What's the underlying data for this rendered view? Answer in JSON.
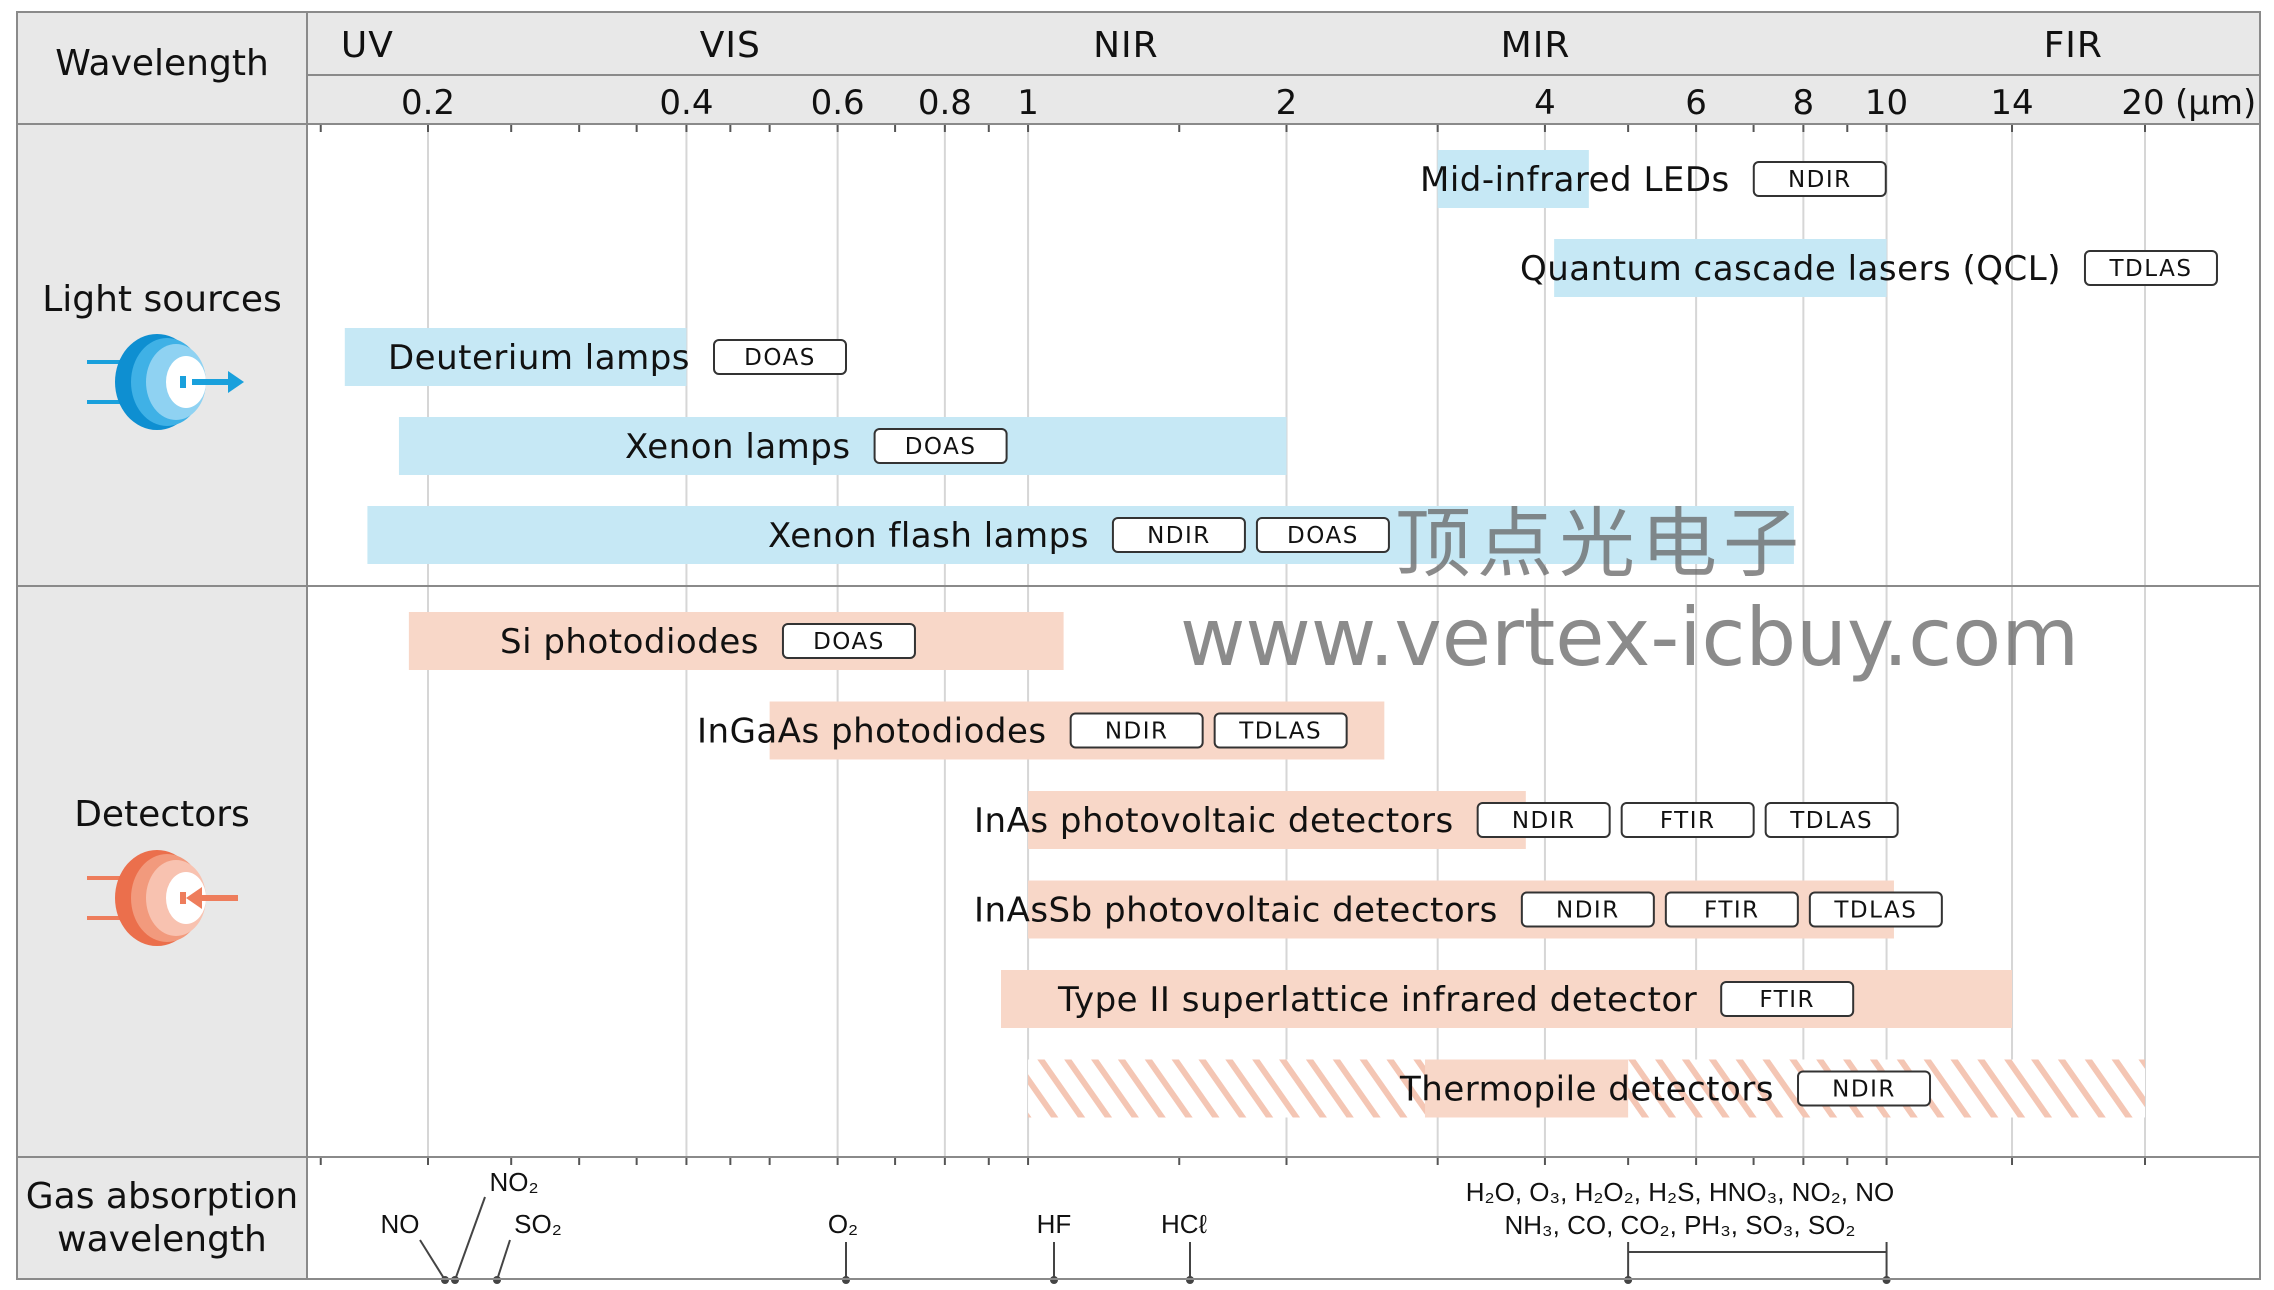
{
  "header": {
    "wavelength_label": "Wavelength",
    "unit": "(μm)"
  },
  "bands": [
    {
      "label": "UV",
      "at": 0.17
    },
    {
      "label": "VIS",
      "at": 0.45
    },
    {
      "label": "NIR",
      "at": 1.3
    },
    {
      "label": "MIR",
      "at": 3.9
    },
    {
      "label": "FIR",
      "at": 16.5
    }
  ],
  "ticks": [
    {
      "label": "0.2",
      "value": 0.2
    },
    {
      "label": "0.4",
      "value": 0.4
    },
    {
      "label": "0.6",
      "value": 0.6
    },
    {
      "label": "0.8",
      "value": 0.8
    },
    {
      "label": "1",
      "value": 1
    },
    {
      "label": "2",
      "value": 2
    },
    {
      "label": "4",
      "value": 4
    },
    {
      "label": "6",
      "value": 6
    },
    {
      "label": "8",
      "value": 8
    },
    {
      "label": "10",
      "value": 10
    },
    {
      "label": "14",
      "value": 14
    },
    {
      "label": "20",
      "value": 20
    }
  ],
  "sections": [
    {
      "key": "light",
      "label": "Light sources",
      "color": "#19a0dc"
    },
    {
      "key": "detectors",
      "label": "Detectors",
      "color": "#ee7d5c"
    },
    {
      "key": "gas",
      "label_line1": "Gas absorption",
      "label_line2": "wavelength"
    }
  ],
  "light_sources": [
    {
      "name": "Mid-infrared LEDs",
      "from": 3.0,
      "to": 4.5,
      "tags": [
        "NDIR"
      ]
    },
    {
      "name": "Quantum cascade lasers (QCL)",
      "from": 4.1,
      "to": 10.0,
      "tags": [
        "TDLAS"
      ]
    },
    {
      "name": "Deuterium lamps",
      "from": 0.16,
      "to": 0.4,
      "tags": [
        "DOAS"
      ]
    },
    {
      "name": "Xenon lamps",
      "from": 0.185,
      "to": 2.0,
      "tags": [
        "DOAS"
      ]
    },
    {
      "name": "Xenon flash lamps",
      "from": 0.17,
      "to": 7.8,
      "tags": [
        "NDIR",
        "DOAS"
      ]
    }
  ],
  "detectors": [
    {
      "name": "Si photodiodes",
      "from": 0.19,
      "to": 1.1,
      "tags": [
        "DOAS"
      ]
    },
    {
      "name": "InGaAs photodiodes",
      "from": 0.5,
      "to": 2.6,
      "tags": [
        "NDIR",
        "TDLAS"
      ]
    },
    {
      "name": "InAs photovoltaic detectors",
      "from": 1.0,
      "to": 3.8,
      "tags": [
        "NDIR",
        "FTIR",
        "TDLAS"
      ]
    },
    {
      "name": "InAsSb photovoltaic detectors",
      "from": 1.0,
      "to": 10.2,
      "tags": [
        "NDIR",
        "FTIR",
        "TDLAS"
      ]
    },
    {
      "name": "Type II superlattice infrared detector",
      "from": 0.93,
      "to": 14.0,
      "tags": [
        "FTIR"
      ]
    },
    {
      "name": "Thermopile detectors",
      "from": 2.9,
      "to": 5.0,
      "hatch_from": 1.0,
      "hatch_to": 20.0,
      "tags": [
        "NDIR"
      ]
    }
  ],
  "gases": [
    {
      "label": "NO",
      "value": 0.215
    },
    {
      "label": "NO₂",
      "value": 0.22
    },
    {
      "label": "SO₂",
      "value": 0.29
    },
    {
      "label": "O₂",
      "value": 0.76
    },
    {
      "label": "HF",
      "value": 1.3
    },
    {
      "label": "HCℓ",
      "value": 1.75
    }
  ],
  "gas_group": {
    "line1": "H₂O, O₃, H₂O₂, H₂S, HNO₃, NO₂, NO",
    "line2": "NH₃, CO, CO₂, PH₃, SO₃, SO₂",
    "from": 5.0,
    "to": 10.0
  },
  "watermark": {
    "cn": "顶点光电子",
    "url": "www.vertex-icbuy.com"
  },
  "colors": {
    "light_fill": "#c6e8f5",
    "detector_fill": "#f8d7c8",
    "hatch": "#f4c6b4",
    "header_bg": "#e8e8e8",
    "grid": "#cfcfcf",
    "frame": "#8a8a8a"
  }
}
